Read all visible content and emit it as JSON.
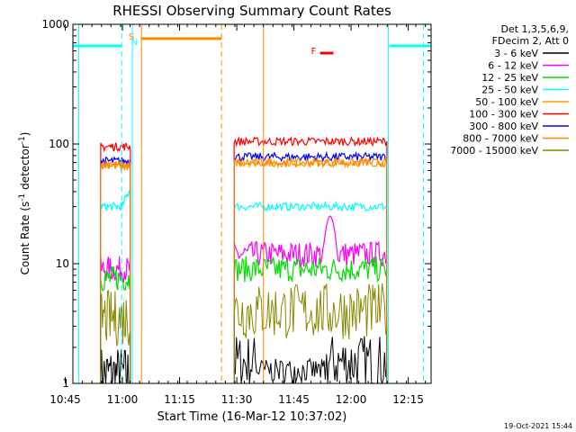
{
  "chart_data": {
    "type": "line",
    "title": "RHESSI Observing Summary Count Rates",
    "xlabel": "Start Time (16-Mar-12 10:37:02)",
    "ylabel_parts": [
      "Count Rate (s",
      "-1",
      " detector",
      "-1",
      ")"
    ],
    "y_scale": "log",
    "ylim": [
      1,
      1000
    ],
    "xlim_minutes": [
      10.0,
      104.0
    ],
    "y_ticks": [
      {
        "v": 1,
        "label": "1"
      },
      {
        "v": 10,
        "label": "10"
      },
      {
        "v": 100,
        "label": "100"
      },
      {
        "v": 1000,
        "label": "1000"
      }
    ],
    "x_ticks": [
      {
        "m": 8,
        "label": "10:45"
      },
      {
        "m": 23,
        "label": "11:00"
      },
      {
        "m": 38,
        "label": "11:15"
      },
      {
        "m": 53,
        "label": "11:30"
      },
      {
        "m": 68,
        "label": "11:45"
      },
      {
        "m": 83,
        "label": "12:00"
      },
      {
        "m": 98,
        "label": "12:15"
      }
    ],
    "legend_header": [
      "Det 1,3,5,6,9,",
      "FDecim 2, Att 0"
    ],
    "legend_placement": "right",
    "series": [
      {
        "name": "3 - 6 keV",
        "color": "#000000",
        "seg1": 1.2,
        "seg2": 1.5
      },
      {
        "name": "6 - 12 keV",
        "color": "#ff00ff",
        "seg1": 9.0,
        "seg2": 12.0
      },
      {
        "name": "12 - 25 keV",
        "color": "#00dd00",
        "seg1": 7.5,
        "seg2": 9.0
      },
      {
        "name": "25 - 50 keV",
        "color": "#00ffff",
        "seg1": 30,
        "seg2": 30
      },
      {
        "name": "50 - 100 keV",
        "color": "#ff9900",
        "seg1": 65,
        "seg2": 70
      },
      {
        "name": "100 - 300 keV",
        "color": "#ff0000",
        "seg1": 95,
        "seg2": 105
      },
      {
        "name": "300 - 800 keV",
        "color": "#0000ff",
        "seg1": 72,
        "seg2": 78
      },
      {
        "name": "800 - 7000 keV",
        "color": "#ff8800",
        "seg1": 67,
        "seg2": 70
      },
      {
        "name": "7000 - 15000 keV",
        "color": "#888800",
        "seg1": 3.5,
        "seg2": 4.0
      }
    ],
    "data_segments": [
      [
        17.3,
        25.1
      ],
      [
        52.3,
        92.4
      ]
    ],
    "flags": [
      {
        "code": "N",
        "label": "N",
        "color": "#00ffff",
        "start_min": 25.3
      },
      {
        "code": "S",
        "label": "S",
        "color": "#ff8800",
        "start_min": 24.6,
        "end_min": 60.0
      },
      {
        "code": "F",
        "label": "F",
        "color": "#ff0000",
        "start_min": 72.5,
        "end_min": 76.0
      }
    ],
    "saa_bars": [
      {
        "start_min": 10.0,
        "end_min": 22.8,
        "value": 660,
        "color": "#00ffff"
      },
      {
        "start_min": 28.0,
        "end_min": 49.0,
        "value": 760,
        "color": "#ff8800"
      },
      {
        "start_min": 93.0,
        "end_min": 104.0,
        "value": 660,
        "color": "#00ffff"
      }
    ],
    "vlines": [
      {
        "m": 11.5,
        "color": "#00ffff",
        "style": "solid"
      },
      {
        "m": 22.8,
        "color": "#00ffff",
        "style": "dashed"
      },
      {
        "m": 25.6,
        "color": "#00ffff",
        "style": "solid"
      },
      {
        "m": 28.0,
        "color": "#ff8800",
        "style": "solid"
      },
      {
        "m": 49.0,
        "color": "#ff8800",
        "style": "dashed"
      },
      {
        "m": 60.0,
        "color": "#ff8800",
        "style": "solid"
      },
      {
        "m": 92.8,
        "color": "#00ffff",
        "style": "solid"
      },
      {
        "m": 102.0,
        "color": "#00ffff",
        "style": "dashed"
      }
    ]
  },
  "footer": {
    "timestamp": "19-Oct-2021 15:44"
  }
}
